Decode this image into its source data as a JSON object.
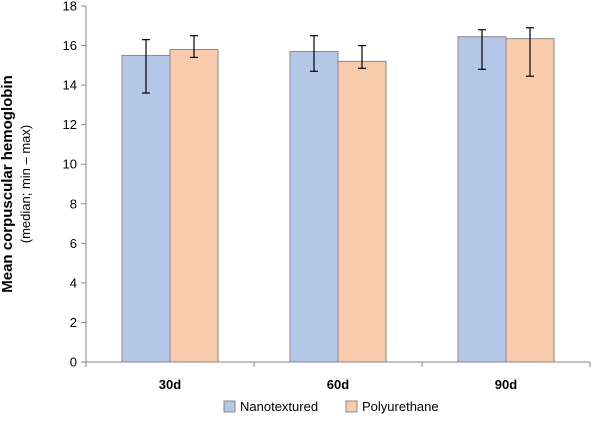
{
  "chart_data": {
    "type": "bar",
    "title": "",
    "xlabel": "",
    "ylabel": "Mean corpuscular hemoglobin",
    "ylabel_sub": "(median;  min – max)",
    "categories": [
      "30d",
      "60d",
      "90d"
    ],
    "ylim": [
      0,
      18
    ],
    "yticks": [
      0,
      2,
      4,
      6,
      8,
      10,
      12,
      14,
      16,
      18
    ],
    "grid": false,
    "legend_position": "bottom",
    "series": [
      {
        "name": "Nanotextured",
        "color": "#b4c7e7",
        "edge_color": "#8a8a8a",
        "values": [
          15.5,
          15.7,
          16.45
        ],
        "err_low": [
          13.6,
          14.7,
          14.8
        ],
        "err_high": [
          16.3,
          16.5,
          16.8
        ]
      },
      {
        "name": "Polyurethane",
        "color": "#f8cbad",
        "edge_color": "#8a8a8a",
        "values": [
          15.8,
          15.2,
          16.35
        ],
        "err_low": [
          15.4,
          14.85,
          14.45
        ],
        "err_high": [
          16.5,
          16.0,
          16.9
        ]
      }
    ]
  }
}
